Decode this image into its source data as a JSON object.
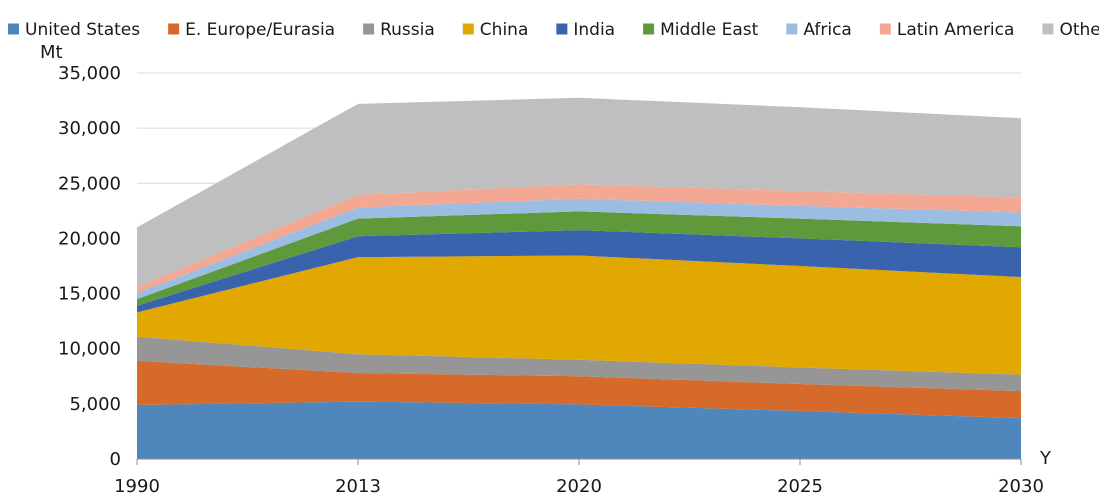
{
  "chart_data": {
    "type": "area",
    "stacked": true,
    "x": [
      "1990",
      "2013",
      "2020",
      "2025",
      "2030"
    ],
    "ylabel": "Mt",
    "xlabel": "Y",
    "ylim": [
      0,
      35000
    ],
    "yticks": [
      0,
      5000,
      10000,
      15000,
      20000,
      25000,
      30000,
      35000
    ],
    "ytick_labels": [
      "0",
      "5,000",
      "10,000",
      "15,000",
      "20,000",
      "25,000",
      "30,000",
      "35,000"
    ],
    "grid": "horizontal",
    "legend_position": "top",
    "series": [
      {
        "name": "United States",
        "color": "#4f87bd",
        "values": [
          4900,
          5200,
          4950,
          4350,
          3700
        ]
      },
      {
        "name": "E. Europe/Eurasia",
        "color": "#d56a2b",
        "values": [
          4000,
          2600,
          2550,
          2450,
          2450
        ]
      },
      {
        "name": "Russia",
        "color": "#969696",
        "values": [
          2200,
          1700,
          1500,
          1500,
          1500
        ]
      },
      {
        "name": "China",
        "color": "#e0a800",
        "values": [
          2200,
          8800,
          9450,
          9200,
          8850
        ]
      },
      {
        "name": "India",
        "color": "#3a63ad",
        "values": [
          600,
          1900,
          2300,
          2500,
          2700
        ]
      },
      {
        "name": "Middle East",
        "color": "#5e9a3b",
        "values": [
          600,
          1600,
          1700,
          1800,
          1900
        ]
      },
      {
        "name": "Africa",
        "color": "#9bbde2",
        "values": [
          550,
          1000,
          1150,
          1150,
          1250
        ]
      },
      {
        "name": "Latin America",
        "color": "#f2a892",
        "values": [
          550,
          1150,
          1300,
          1350,
          1350
        ]
      },
      {
        "name": "Others",
        "color": "#bfbfbf",
        "values": [
          5400,
          8250,
          7850,
          7600,
          7200
        ]
      }
    ]
  }
}
